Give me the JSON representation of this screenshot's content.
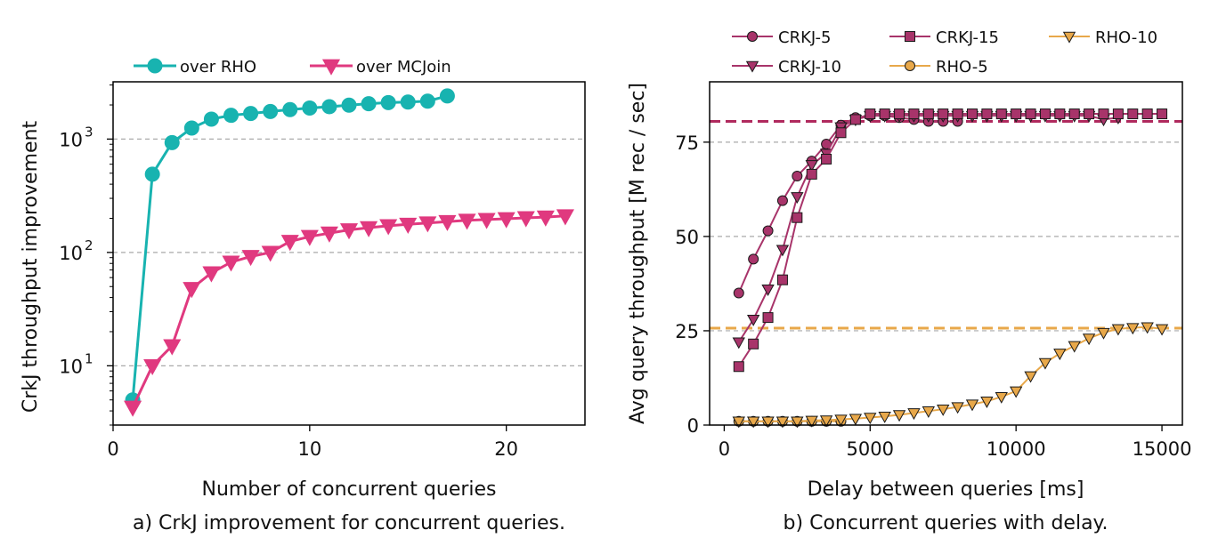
{
  "chart_data": [
    {
      "type": "line",
      "caption": "a) CrkJ improvement for concurrent queries.",
      "xlabel": "Number of concurrent queries",
      "ylabel": "CrkJ throughput improvement",
      "xlim": [
        0,
        24
      ],
      "ylim": [
        3,
        3200
      ],
      "yscale": "log",
      "xticks": [
        "0",
        "10",
        "20"
      ],
      "yticks": [
        "10^1",
        "10^2",
        "10^3"
      ],
      "grid": "horizontal-dashed",
      "legend_placement": "top-left-outside",
      "series": [
        {
          "name": "over RHO",
          "color": "#18b3b0",
          "marker": "circle",
          "x": [
            1,
            2,
            3,
            4,
            5,
            6,
            7,
            8,
            9,
            10,
            11,
            12,
            13,
            14,
            15,
            16,
            17
          ],
          "values": [
            5,
            490,
            930,
            1250,
            1500,
            1620,
            1680,
            1750,
            1820,
            1880,
            1930,
            1990,
            2050,
            2100,
            2120,
            2160,
            2400
          ]
        },
        {
          "name": "over MCJoin",
          "color": "#e0397f",
          "marker": "triangle-down",
          "x": [
            1,
            2,
            3,
            4,
            5,
            6,
            7,
            8,
            9,
            10,
            11,
            12,
            13,
            14,
            15,
            16,
            17,
            18,
            19,
            20,
            21,
            22,
            23
          ],
          "values": [
            4.3,
            10,
            15,
            48,
            66,
            82,
            92,
            100,
            125,
            138,
            148,
            158,
            165,
            172,
            177,
            182,
            187,
            192,
            195,
            198,
            202,
            205,
            210
          ]
        }
      ]
    },
    {
      "type": "line",
      "caption": "b) Concurrent queries with delay.",
      "xlabel": "Delay between queries [ms]",
      "ylabel": "Avg query throughput [M rec / sec]",
      "xlim": [
        -500,
        15700
      ],
      "ylim": [
        0,
        91
      ],
      "xticks": [
        "0",
        "5000",
        "10000",
        "15000"
      ],
      "yticks": [
        "0",
        "25",
        "50",
        "75"
      ],
      "grid": "horizontal-dashed",
      "legend_placement": "top-outside",
      "reference_lines": [
        {
          "y": 80.5,
          "color": "#b02a5e"
        },
        {
          "y": 25.7,
          "color": "#e8a84a"
        }
      ],
      "series": [
        {
          "name": "CRKJ-5",
          "color": "#a8346a",
          "marker": "circle",
          "x": [
            500,
            1000,
            1500,
            2000,
            2500,
            3000,
            3500,
            4000,
            4500,
            5000,
            5500,
            6000,
            6500,
            7000,
            7500,
            8000
          ],
          "values": [
            35,
            44,
            51.5,
            59.5,
            66,
            70,
            74.5,
            79.5,
            81.5,
            82,
            82,
            81.5,
            81,
            80.5,
            80.5,
            80.5
          ]
        },
        {
          "name": "CRKJ-10",
          "color": "#a8346a",
          "marker": "triangle-down",
          "x": [
            500,
            1000,
            1500,
            2000,
            2500,
            3000,
            3500,
            4000,
            4500,
            5000,
            5500,
            6000,
            6500,
            7000,
            7500,
            8000,
            8500,
            9000,
            9500,
            10000,
            10500,
            11000,
            11500,
            12000,
            12500,
            13000,
            13500
          ],
          "values": [
            22,
            28,
            36,
            46.5,
            60.5,
            69,
            72,
            79,
            81,
            82,
            82,
            82,
            82,
            82,
            82,
            82,
            82,
            82,
            82,
            82,
            82,
            82,
            82,
            82,
            82,
            81,
            81.5
          ]
        },
        {
          "name": "CRKJ-15",
          "color": "#a8346a",
          "marker": "square",
          "x": [
            500,
            1000,
            1500,
            2000,
            2500,
            3000,
            3500,
            4000,
            4500,
            5000,
            5500,
            6000,
            6500,
            7000,
            7500,
            8000,
            8500,
            9000,
            9500,
            10000,
            10500,
            11000,
            11500,
            12000,
            12500,
            13000,
            13500,
            14000,
            14500,
            15000
          ],
          "values": [
            15.5,
            21.5,
            28.5,
            38.5,
            55,
            66.5,
            70.5,
            77.5,
            81,
            82.5,
            82.5,
            82.5,
            82.5,
            82.5,
            82.5,
            82.5,
            82.5,
            82.5,
            82.5,
            82.5,
            82.5,
            82.5,
            82.5,
            82.5,
            82.5,
            82.5,
            82.5,
            82.5,
            82.5,
            82.5
          ]
        },
        {
          "name": "RHO-5",
          "color": "#e8a84a",
          "marker": "circle",
          "x": [
            500,
            1000,
            1500,
            2000,
            2500,
            3000,
            3500,
            4000
          ],
          "values": [
            1,
            1,
            1,
            1,
            1,
            1,
            1,
            1
          ]
        },
        {
          "name": "RHO-10",
          "color": "#e8a84a",
          "marker": "triangle-down",
          "x": [
            500,
            1000,
            1500,
            2000,
            2500,
            3000,
            3500,
            4000,
            4500,
            5000,
            5500,
            6000,
            6500,
            7000,
            7500,
            8000,
            8500,
            9000,
            9500,
            10000,
            10500,
            11000,
            11500,
            12000,
            12500,
            13000,
            13500,
            14000,
            14500,
            15000
          ],
          "values": [
            1,
            1,
            1,
            1,
            1,
            1.2,
            1.3,
            1.5,
            1.7,
            2,
            2.3,
            2.7,
            3.2,
            3.7,
            4.2,
            4.8,
            5.5,
            6.3,
            7.5,
            9,
            13,
            16.5,
            19,
            21,
            23,
            24.5,
            25.5,
            25.8,
            26,
            25.5
          ]
        }
      ]
    }
  ]
}
